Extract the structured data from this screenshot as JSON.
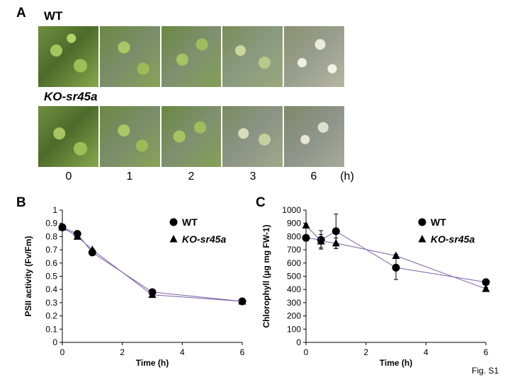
{
  "panels": {
    "a": {
      "letter": "A",
      "wt_label": "WT",
      "ko_label": "KO-sr45a",
      "time_labels": [
        "0",
        "1",
        "2",
        "3",
        "6"
      ],
      "time_unit": "(h)"
    },
    "b": {
      "letter": "B"
    },
    "c": {
      "letter": "C"
    }
  },
  "figure_label": "Fig. S1",
  "chart_data": [
    {
      "type": "line",
      "panel": "B",
      "xlabel": "Time (h)",
      "ylabel": "PSII activity (Fv/Fm)",
      "xlim": [
        0,
        6
      ],
      "ylim": [
        0,
        1
      ],
      "xticks": [
        0,
        2,
        4,
        6
      ],
      "yticks": [
        0,
        0.1,
        0.2,
        0.3,
        0.4,
        0.5,
        0.6,
        0.7,
        0.8,
        0.9,
        1
      ],
      "ytick_labels": [
        "0",
        "0.1",
        "0.2",
        "0.3",
        "0.4",
        "0.5",
        "0.6",
        "0.7",
        "0.8",
        "0.9",
        "1"
      ],
      "legend": "top-right",
      "grid": false,
      "x": [
        0,
        0.5,
        1,
        3,
        6
      ],
      "series": [
        {
          "name": "WT",
          "marker": "circle",
          "values": [
            0.87,
            0.82,
            0.68,
            0.38,
            0.31
          ],
          "errors": [
            0.01,
            0.01,
            0.01,
            0.01,
            0.01
          ]
        },
        {
          "name": "KO-sr45a",
          "marker": "triangle",
          "values": [
            0.87,
            0.8,
            0.7,
            0.36,
            0.31
          ],
          "errors": [
            0.01,
            0.01,
            0.01,
            0.01,
            0.01
          ]
        }
      ],
      "line_color": "#7b5ea7"
    },
    {
      "type": "line",
      "panel": "C",
      "xlabel": "Time (h)",
      "ylabel": "Chlorophyll (µg mg FW-1)",
      "xlim": [
        0,
        6
      ],
      "ylim": [
        0,
        1000
      ],
      "xticks": [
        0,
        2,
        4,
        6
      ],
      "yticks": [
        0,
        100,
        200,
        300,
        400,
        500,
        600,
        700,
        800,
        900,
        1000
      ],
      "ytick_labels": [
        "0",
        "100",
        "200",
        "300",
        "400",
        "500",
        "600",
        "700",
        "800",
        "900",
        "1000"
      ],
      "legend": "top-right",
      "grid": false,
      "x": [
        0,
        0.5,
        1,
        3,
        6
      ],
      "series": [
        {
          "name": "WT",
          "marker": "circle",
          "values": [
            790,
            775,
            840,
            565,
            455
          ],
          "errors": [
            10,
            70,
            130,
            90,
            10
          ]
        },
        {
          "name": "KO-sr45a",
          "marker": "triangle",
          "values": [
            885,
            765,
            750,
            655,
            405
          ],
          "errors": [
            10,
            50,
            40,
            10,
            10
          ]
        }
      ],
      "line_color": "#7b5ea7"
    }
  ]
}
